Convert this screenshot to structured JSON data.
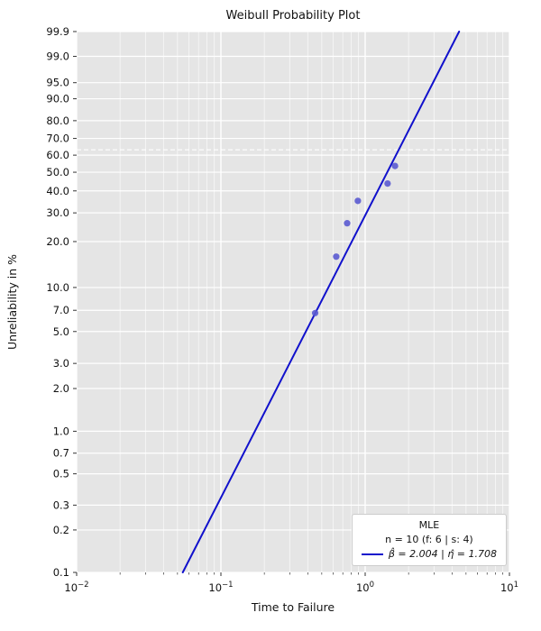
{
  "chart_data": {
    "type": "scatter",
    "title": "Weibull Probability Plot",
    "xlabel": "Time to Failure",
    "ylabel": "Unreliability in %",
    "x_scale": "log10",
    "x_range_exponents": [
      -2,
      1
    ],
    "x_tick_exponents": [
      -2,
      -1,
      0,
      1
    ],
    "y_scale": "weibull-probability",
    "y_range": [
      0.1,
      99.9
    ],
    "y_ticks": [
      99.9,
      99.0,
      95.0,
      90.0,
      80.0,
      70.0,
      60.0,
      50.0,
      40.0,
      30.0,
      20.0,
      10.0,
      7.0,
      5.0,
      3.0,
      2.0,
      1.0,
      0.7,
      0.5,
      0.3,
      0.2,
      0.1
    ],
    "reference_line_percent": 63.2,
    "points": [
      {
        "x": 0.45,
        "y": 6.7
      },
      {
        "x": 0.63,
        "y": 16.0
      },
      {
        "x": 0.75,
        "y": 26.0
      },
      {
        "x": 0.89,
        "y": 35.2
      },
      {
        "x": 1.43,
        "y": 43.8
      },
      {
        "x": 1.61,
        "y": 53.6
      }
    ],
    "fit": {
      "distribution": "Weibull_2P",
      "beta": 2.004,
      "eta": 1.708
    },
    "legend": {
      "title": "MLE",
      "entry_sample": "n = 10 (f: 6 | s: 4)",
      "entry_fit": "β̂ = 2.004 | η̂ = 1.708"
    },
    "grid": true,
    "legend_position": "lower right",
    "colors": {
      "line": "#1111cc",
      "marker": "#5a5ad0",
      "plot_bg": "#e5e5e5",
      "grid": "#ffffff",
      "text": "#111111"
    }
  }
}
